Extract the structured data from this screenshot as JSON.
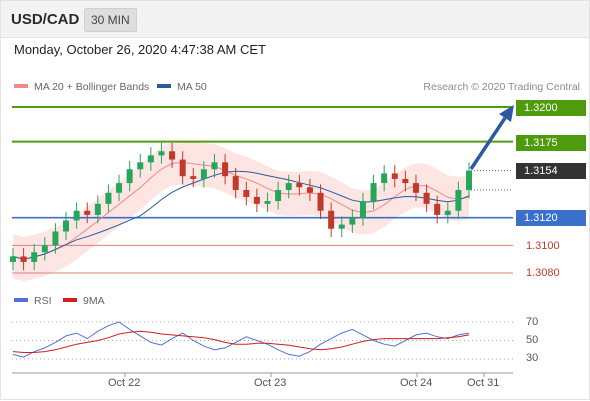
{
  "header": {
    "symbol": "USD/CAD",
    "timeframe": "30 MIN"
  },
  "datetime": "Monday, October 26, 2020 4:47:38 AM CET",
  "legend": {
    "ma20_label": "MA 20 + Bollinger Bands",
    "ma20_color": "#f08a8a",
    "ma50_label": "MA 50",
    "ma50_color": "#2c5aa0",
    "credit": "Research © 2020 Trading Central"
  },
  "levels": {
    "r2": "1.3200",
    "r1": "1.3175",
    "last": "1.3154",
    "s1": "1.3120",
    "s2": "1.3100",
    "s3": "1.3080"
  },
  "rsi_legend": {
    "rsi_label": "RSI",
    "rsi_color": "#4f74d8",
    "ma9_label": "9MA",
    "ma9_color": "#d11d1d"
  },
  "rsi_ticks": [
    "70",
    "50",
    "30"
  ],
  "x_labels": [
    "Oct 22",
    "Oct 23",
    "Oct 24",
    "Oct 31"
  ],
  "colors": {
    "resistance": "#4f9b0e",
    "support": "#3a70c9",
    "minor_support": "#d9807a",
    "bull_candle": "#26a65b",
    "bear_candle": "#c0392b",
    "band_fill": "#fde0df",
    "arrow": "#2c5aa0"
  },
  "chart_data": {
    "type": "candlestick",
    "y_range": [
      1.3065,
      1.3215
    ],
    "horizontal_levels": [
      1.32,
      1.3175,
      1.3154,
      1.312,
      1.31,
      1.308
    ],
    "price_close_approx": [
      1.3092,
      1.3088,
      1.3095,
      1.31,
      1.311,
      1.3118,
      1.3125,
      1.3122,
      1.313,
      1.3138,
      1.3145,
      1.3155,
      1.316,
      1.3165,
      1.3168,
      1.3162,
      1.315,
      1.3148,
      1.3155,
      1.316,
      1.315,
      1.314,
      1.3135,
      1.313,
      1.3132,
      1.314,
      1.3145,
      1.3142,
      1.3138,
      1.3125,
      1.3112,
      1.3115,
      1.312,
      1.3132,
      1.3145,
      1.3152,
      1.3148,
      1.3145,
      1.3138,
      1.313,
      1.3122,
      1.3125,
      1.314,
      1.3154
    ],
    "rsi": {
      "series": [
        {
          "name": "RSI",
          "values": [
            35,
            32,
            38,
            42,
            48,
            55,
            58,
            52,
            60,
            66,
            70,
            62,
            55,
            48,
            45,
            52,
            58,
            50,
            44,
            40,
            42,
            48,
            54,
            50,
            46,
            40,
            35,
            33,
            38,
            46,
            52,
            58,
            62,
            56,
            50,
            46,
            44,
            50,
            56,
            58,
            54,
            52,
            56,
            58
          ]
        },
        {
          "name": "9MA",
          "values": [
            38,
            37,
            37,
            38,
            40,
            43,
            46,
            48,
            50,
            53,
            57,
            59,
            60,
            59,
            57,
            56,
            55,
            54,
            53,
            51,
            48,
            46,
            46,
            47,
            47,
            46,
            45,
            43,
            41,
            40,
            41,
            43,
            46,
            49,
            51,
            52,
            52,
            52,
            52,
            52,
            52,
            53,
            54,
            56
          ]
        }
      ],
      "levels": [
        70,
        50,
        30
      ]
    }
  }
}
